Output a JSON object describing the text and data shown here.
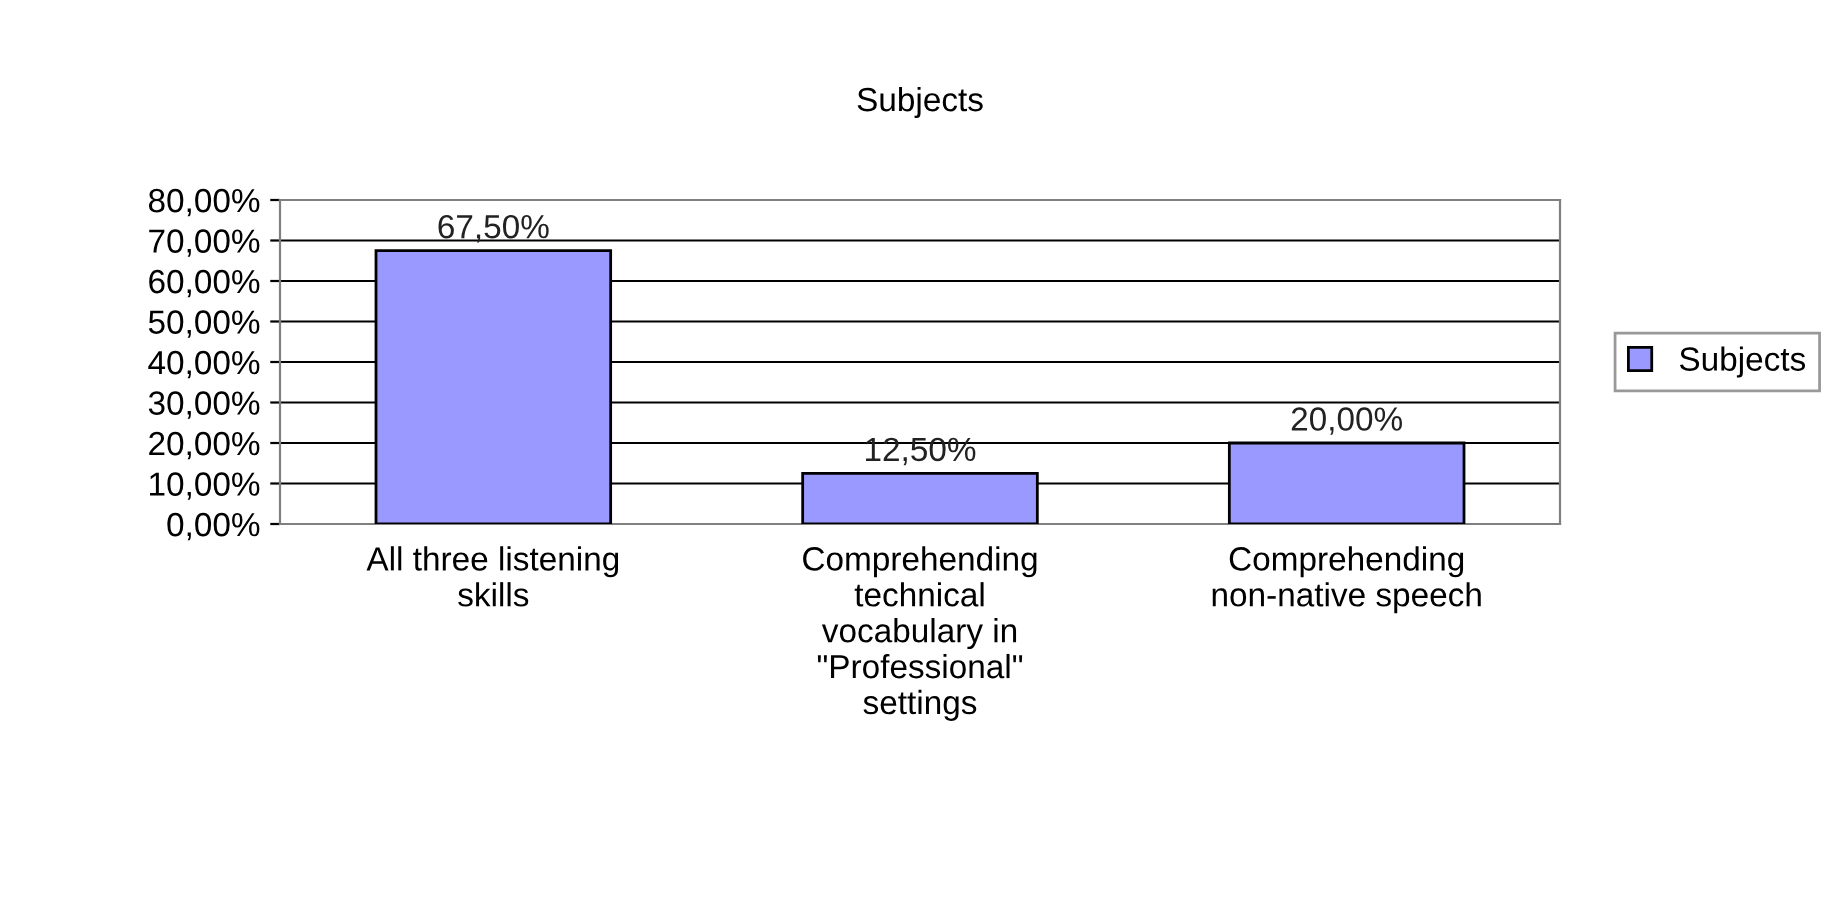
{
  "chart_data": {
    "type": "bar",
    "title": "Subjects",
    "categories": [
      "All three listening\nskills",
      "Comprehending\ntechnical\nvocabulary in\n\"Professional\"\nsettings",
      "Comprehending\nnon-native speech"
    ],
    "series": [
      {
        "name": "Subjects",
        "color": "#9999ff",
        "values": [
          67.5,
          12.5,
          20.0
        ],
        "value_labels": [
          "67,50%",
          "12,50%",
          "20,00%"
        ]
      }
    ],
    "ylim": [
      0,
      80
    ],
    "yticks": [
      {
        "value": 0,
        "label": "0,00%"
      },
      {
        "value": 10,
        "label": "10,00%"
      },
      {
        "value": 20,
        "label": "20,00%"
      },
      {
        "value": 30,
        "label": "30,00%"
      },
      {
        "value": 40,
        "label": "40,00%"
      },
      {
        "value": 50,
        "label": "50,00%"
      },
      {
        "value": 60,
        "label": "60,00%"
      },
      {
        "value": 70,
        "label": "70,00%"
      },
      {
        "value": 80,
        "label": "80,00%"
      }
    ],
    "grid": "y",
    "legend": "right"
  }
}
